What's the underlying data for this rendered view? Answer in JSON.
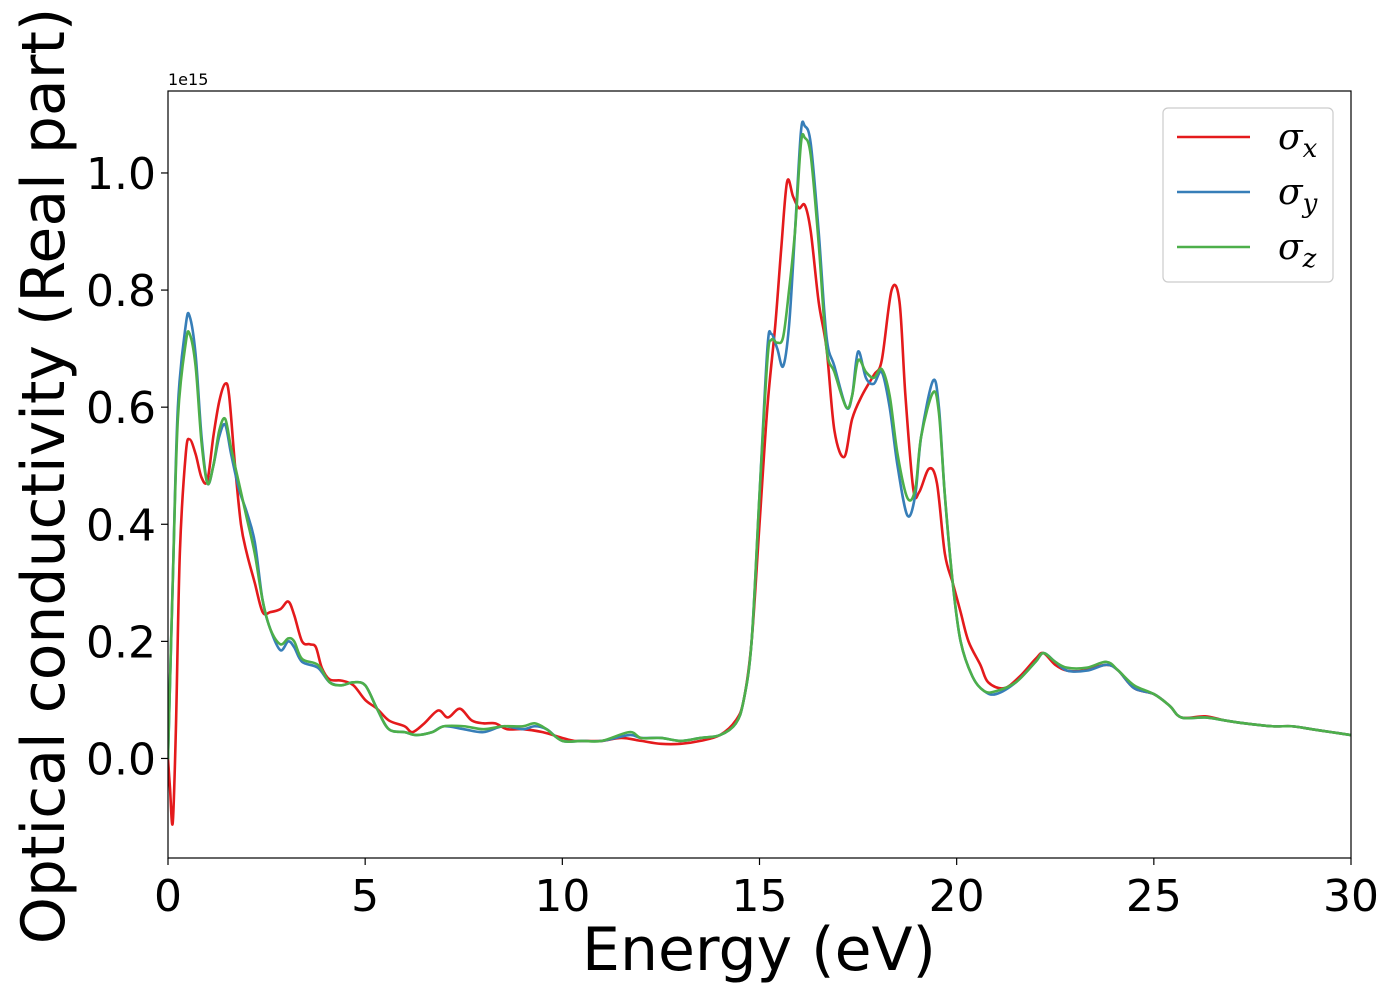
{
  "chart_data": {
    "type": "line",
    "title": "",
    "xlabel": "Energy (eV)",
    "ylabel": "Optical conductivity (Real part)",
    "y_offset_label": "1e15",
    "xlim": [
      0,
      30
    ],
    "ylim": [
      -0.17,
      1.14
    ],
    "xticks": [
      0,
      5,
      10,
      15,
      20,
      25,
      30
    ],
    "xtick_labels": [
      "0",
      "5",
      "10",
      "15",
      "20",
      "25",
      "30"
    ],
    "yticks": [
      0.0,
      0.2,
      0.4,
      0.6,
      0.8,
      1.0
    ],
    "ytick_labels": [
      "0.0",
      "0.2",
      "0.4",
      "0.6",
      "0.8",
      "1.0"
    ],
    "grid": false,
    "legend_position": "top-right",
    "series": [
      {
        "name": "σx",
        "legend_base": "σ",
        "legend_sub": "x",
        "color": "#e41a1c",
        "points": [
          [
            0.0,
            0.0
          ],
          [
            0.05,
            -0.05
          ],
          [
            0.12,
            -0.11
          ],
          [
            0.2,
            0.05
          ],
          [
            0.3,
            0.35
          ],
          [
            0.45,
            0.52
          ],
          [
            0.55,
            0.545
          ],
          [
            0.7,
            0.52
          ],
          [
            0.85,
            0.48
          ],
          [
            1.0,
            0.475
          ],
          [
            1.15,
            0.55
          ],
          [
            1.3,
            0.61
          ],
          [
            1.45,
            0.64
          ],
          [
            1.55,
            0.62
          ],
          [
            1.7,
            0.5
          ],
          [
            1.85,
            0.4
          ],
          [
            2.0,
            0.35
          ],
          [
            2.2,
            0.3
          ],
          [
            2.4,
            0.25
          ],
          [
            2.6,
            0.25
          ],
          [
            2.85,
            0.255
          ],
          [
            3.05,
            0.268
          ],
          [
            3.2,
            0.245
          ],
          [
            3.4,
            0.2
          ],
          [
            3.6,
            0.195
          ],
          [
            3.75,
            0.19
          ],
          [
            3.9,
            0.155
          ],
          [
            4.1,
            0.135
          ],
          [
            4.4,
            0.133
          ],
          [
            4.7,
            0.125
          ],
          [
            5.0,
            0.1
          ],
          [
            5.3,
            0.085
          ],
          [
            5.6,
            0.065
          ],
          [
            6.0,
            0.055
          ],
          [
            6.2,
            0.045
          ],
          [
            6.5,
            0.06
          ],
          [
            6.85,
            0.082
          ],
          [
            7.1,
            0.07
          ],
          [
            7.4,
            0.085
          ],
          [
            7.7,
            0.065
          ],
          [
            8.0,
            0.06
          ],
          [
            8.3,
            0.06
          ],
          [
            8.6,
            0.05
          ],
          [
            9.0,
            0.05
          ],
          [
            9.5,
            0.045
          ],
          [
            10.0,
            0.035
          ],
          [
            10.3,
            0.03
          ],
          [
            10.6,
            0.03
          ],
          [
            11.0,
            0.03
          ],
          [
            11.5,
            0.035
          ],
          [
            12.0,
            0.03
          ],
          [
            12.5,
            0.025
          ],
          [
            13.0,
            0.025
          ],
          [
            13.5,
            0.03
          ],
          [
            14.0,
            0.04
          ],
          [
            14.4,
            0.065
          ],
          [
            14.6,
            0.1
          ],
          [
            14.8,
            0.2
          ],
          [
            15.0,
            0.4
          ],
          [
            15.2,
            0.6
          ],
          [
            15.4,
            0.74
          ],
          [
            15.55,
            0.87
          ],
          [
            15.7,
            0.985
          ],
          [
            15.85,
            0.96
          ],
          [
            16.0,
            0.94
          ],
          [
            16.15,
            0.945
          ],
          [
            16.3,
            0.9
          ],
          [
            16.5,
            0.78
          ],
          [
            16.7,
            0.7
          ],
          [
            16.9,
            0.56
          ],
          [
            17.15,
            0.515
          ],
          [
            17.35,
            0.58
          ],
          [
            17.6,
            0.62
          ],
          [
            17.9,
            0.655
          ],
          [
            18.1,
            0.68
          ],
          [
            18.35,
            0.8
          ],
          [
            18.55,
            0.78
          ],
          [
            18.7,
            0.62
          ],
          [
            18.9,
            0.46
          ],
          [
            19.05,
            0.455
          ],
          [
            19.3,
            0.495
          ],
          [
            19.5,
            0.47
          ],
          [
            19.7,
            0.35
          ],
          [
            19.9,
            0.3
          ],
          [
            20.1,
            0.25
          ],
          [
            20.3,
            0.2
          ],
          [
            20.6,
            0.16
          ],
          [
            20.8,
            0.13
          ],
          [
            21.2,
            0.12
          ],
          [
            21.6,
            0.14
          ],
          [
            22.0,
            0.17
          ],
          [
            22.2,
            0.18
          ],
          [
            22.5,
            0.16
          ],
          [
            22.8,
            0.15
          ],
          [
            23.2,
            0.15
          ],
          [
            23.8,
            0.16
          ],
          [
            24.1,
            0.15
          ],
          [
            24.5,
            0.12
          ],
          [
            25.0,
            0.11
          ],
          [
            25.4,
            0.09
          ],
          [
            25.7,
            0.07
          ],
          [
            26.3,
            0.072
          ],
          [
            26.8,
            0.065
          ],
          [
            27.3,
            0.06
          ],
          [
            28.0,
            0.055
          ],
          [
            28.5,
            0.055
          ],
          [
            29.0,
            0.05
          ],
          [
            29.5,
            0.045
          ],
          [
            30.0,
            0.04
          ]
        ]
      },
      {
        "name": "σy",
        "legend_base": "σ",
        "legend_sub": "y",
        "color": "#377eb8",
        "points": [
          [
            0.0,
            0.0
          ],
          [
            0.12,
            0.3
          ],
          [
            0.25,
            0.6
          ],
          [
            0.45,
            0.74
          ],
          [
            0.55,
            0.755
          ],
          [
            0.7,
            0.69
          ],
          [
            0.85,
            0.55
          ],
          [
            1.0,
            0.47
          ],
          [
            1.15,
            0.5
          ],
          [
            1.3,
            0.55
          ],
          [
            1.45,
            0.57
          ],
          [
            1.6,
            0.52
          ],
          [
            1.8,
            0.46
          ],
          [
            2.0,
            0.42
          ],
          [
            2.2,
            0.37
          ],
          [
            2.4,
            0.27
          ],
          [
            2.6,
            0.22
          ],
          [
            2.85,
            0.185
          ],
          [
            3.05,
            0.2
          ],
          [
            3.2,
            0.19
          ],
          [
            3.4,
            0.165
          ],
          [
            3.8,
            0.155
          ],
          [
            4.1,
            0.13
          ],
          [
            4.4,
            0.125
          ],
          [
            4.7,
            0.13
          ],
          [
            5.0,
            0.125
          ],
          [
            5.3,
            0.085
          ],
          [
            5.6,
            0.05
          ],
          [
            6.0,
            0.045
          ],
          [
            6.3,
            0.04
          ],
          [
            6.7,
            0.045
          ],
          [
            7.0,
            0.055
          ],
          [
            7.5,
            0.05
          ],
          [
            8.0,
            0.045
          ],
          [
            8.5,
            0.055
          ],
          [
            9.0,
            0.05
          ],
          [
            9.3,
            0.055
          ],
          [
            9.6,
            0.05
          ],
          [
            10.0,
            0.03
          ],
          [
            10.5,
            0.03
          ],
          [
            11.0,
            0.03
          ],
          [
            11.7,
            0.04
          ],
          [
            12.0,
            0.035
          ],
          [
            12.5,
            0.035
          ],
          [
            13.0,
            0.03
          ],
          [
            13.5,
            0.035
          ],
          [
            14.0,
            0.04
          ],
          [
            14.4,
            0.06
          ],
          [
            14.6,
            0.1
          ],
          [
            14.8,
            0.2
          ],
          [
            15.0,
            0.45
          ],
          [
            15.2,
            0.7
          ],
          [
            15.3,
            0.725
          ],
          [
            15.45,
            0.7
          ],
          [
            15.6,
            0.67
          ],
          [
            15.75,
            0.74
          ],
          [
            15.9,
            0.9
          ],
          [
            16.05,
            1.07
          ],
          [
            16.15,
            1.08
          ],
          [
            16.3,
            1.05
          ],
          [
            16.5,
            0.9
          ],
          [
            16.7,
            0.72
          ],
          [
            16.9,
            0.67
          ],
          [
            17.2,
            0.6
          ],
          [
            17.35,
            0.62
          ],
          [
            17.5,
            0.695
          ],
          [
            17.7,
            0.65
          ],
          [
            17.9,
            0.64
          ],
          [
            18.1,
            0.66
          ],
          [
            18.3,
            0.6
          ],
          [
            18.5,
            0.5
          ],
          [
            18.75,
            0.415
          ],
          [
            18.95,
            0.45
          ],
          [
            19.1,
            0.55
          ],
          [
            19.4,
            0.645
          ],
          [
            19.55,
            0.6
          ],
          [
            19.7,
            0.45
          ],
          [
            19.9,
            0.3
          ],
          [
            20.1,
            0.2
          ],
          [
            20.4,
            0.14
          ],
          [
            20.7,
            0.115
          ],
          [
            21.0,
            0.11
          ],
          [
            21.5,
            0.13
          ],
          [
            22.0,
            0.165
          ],
          [
            22.2,
            0.18
          ],
          [
            22.5,
            0.165
          ],
          [
            22.8,
            0.15
          ],
          [
            23.3,
            0.15
          ],
          [
            23.8,
            0.16
          ],
          [
            24.1,
            0.15
          ],
          [
            24.5,
            0.12
          ],
          [
            25.0,
            0.11
          ],
          [
            25.4,
            0.09
          ],
          [
            25.7,
            0.07
          ],
          [
            26.3,
            0.07
          ],
          [
            26.8,
            0.065
          ],
          [
            27.3,
            0.06
          ],
          [
            28.0,
            0.055
          ],
          [
            28.5,
            0.055
          ],
          [
            29.0,
            0.05
          ],
          [
            29.5,
            0.045
          ],
          [
            30.0,
            0.04
          ]
        ]
      },
      {
        "name": "σz",
        "legend_base": "σ",
        "legend_sub": "z",
        "color": "#4daf4a",
        "points": [
          [
            0.0,
            0.0
          ],
          [
            0.12,
            0.3
          ],
          [
            0.25,
            0.58
          ],
          [
            0.45,
            0.71
          ],
          [
            0.55,
            0.725
          ],
          [
            0.7,
            0.67
          ],
          [
            0.85,
            0.54
          ],
          [
            1.0,
            0.47
          ],
          [
            1.15,
            0.5
          ],
          [
            1.3,
            0.56
          ],
          [
            1.45,
            0.58
          ],
          [
            1.6,
            0.53
          ],
          [
            1.8,
            0.47
          ],
          [
            2.0,
            0.41
          ],
          [
            2.2,
            0.35
          ],
          [
            2.4,
            0.27
          ],
          [
            2.6,
            0.22
          ],
          [
            2.85,
            0.195
          ],
          [
            3.05,
            0.205
          ],
          [
            3.2,
            0.2
          ],
          [
            3.4,
            0.17
          ],
          [
            3.8,
            0.16
          ],
          [
            4.1,
            0.13
          ],
          [
            4.4,
            0.125
          ],
          [
            4.7,
            0.13
          ],
          [
            5.0,
            0.125
          ],
          [
            5.3,
            0.085
          ],
          [
            5.6,
            0.05
          ],
          [
            6.0,
            0.045
          ],
          [
            6.3,
            0.04
          ],
          [
            6.7,
            0.045
          ],
          [
            7.0,
            0.055
          ],
          [
            7.5,
            0.055
          ],
          [
            8.0,
            0.05
          ],
          [
            8.5,
            0.055
          ],
          [
            9.0,
            0.055
          ],
          [
            9.3,
            0.06
          ],
          [
            9.6,
            0.05
          ],
          [
            10.0,
            0.03
          ],
          [
            10.5,
            0.03
          ],
          [
            11.0,
            0.03
          ],
          [
            11.7,
            0.045
          ],
          [
            12.0,
            0.035
          ],
          [
            12.5,
            0.035
          ],
          [
            13.0,
            0.03
          ],
          [
            13.5,
            0.035
          ],
          [
            14.0,
            0.04
          ],
          [
            14.4,
            0.06
          ],
          [
            14.6,
            0.1
          ],
          [
            14.8,
            0.2
          ],
          [
            15.0,
            0.45
          ],
          [
            15.2,
            0.68
          ],
          [
            15.3,
            0.715
          ],
          [
            15.45,
            0.71
          ],
          [
            15.6,
            0.72
          ],
          [
            15.75,
            0.8
          ],
          [
            15.9,
            0.9
          ],
          [
            16.05,
            1.05
          ],
          [
            16.15,
            1.06
          ],
          [
            16.3,
            1.03
          ],
          [
            16.5,
            0.88
          ],
          [
            16.7,
            0.7
          ],
          [
            16.9,
            0.66
          ],
          [
            17.2,
            0.6
          ],
          [
            17.35,
            0.62
          ],
          [
            17.5,
            0.68
          ],
          [
            17.7,
            0.66
          ],
          [
            17.9,
            0.65
          ],
          [
            18.1,
            0.665
          ],
          [
            18.3,
            0.62
          ],
          [
            18.5,
            0.52
          ],
          [
            18.75,
            0.445
          ],
          [
            18.95,
            0.46
          ],
          [
            19.1,
            0.55
          ],
          [
            19.4,
            0.625
          ],
          [
            19.55,
            0.59
          ],
          [
            19.7,
            0.45
          ],
          [
            19.9,
            0.3
          ],
          [
            20.1,
            0.2
          ],
          [
            20.4,
            0.14
          ],
          [
            20.7,
            0.115
          ],
          [
            21.0,
            0.115
          ],
          [
            21.5,
            0.13
          ],
          [
            22.0,
            0.165
          ],
          [
            22.2,
            0.18
          ],
          [
            22.5,
            0.165
          ],
          [
            22.8,
            0.155
          ],
          [
            23.3,
            0.155
          ],
          [
            23.8,
            0.165
          ],
          [
            24.1,
            0.15
          ],
          [
            24.5,
            0.125
          ],
          [
            25.0,
            0.11
          ],
          [
            25.4,
            0.09
          ],
          [
            25.7,
            0.07
          ],
          [
            26.3,
            0.07
          ],
          [
            26.8,
            0.065
          ],
          [
            27.3,
            0.06
          ],
          [
            28.0,
            0.055
          ],
          [
            28.5,
            0.055
          ],
          [
            29.0,
            0.05
          ],
          [
            29.5,
            0.045
          ],
          [
            30.0,
            0.04
          ]
        ]
      }
    ]
  }
}
